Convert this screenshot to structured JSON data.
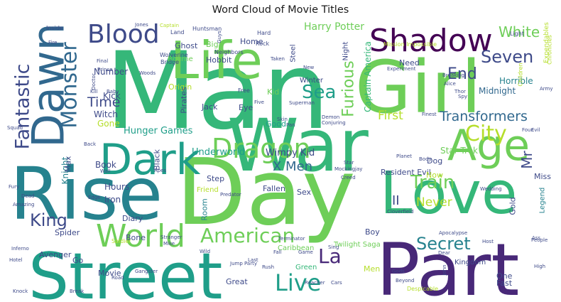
{
  "title": "Word Cloud of Movie Titles",
  "palette": [
    "#440154",
    "#482878",
    "#3e4a89",
    "#31688e",
    "#26828e",
    "#1f9e89",
    "#35b779",
    "#6ece58",
    "#b5de2b"
  ],
  "words": [
    {
      "text": "Man",
      "c": "#35b779"
    },
    {
      "text": "Day",
      "c": "#6ece58"
    },
    {
      "text": "Street",
      "c": "#1f9e89"
    },
    {
      "text": "Part",
      "c": "#482878"
    },
    {
      "text": "Girl",
      "c": "#6ece58"
    },
    {
      "text": "Rise",
      "c": "#26828e"
    },
    {
      "text": "War",
      "c": "#35b779"
    },
    {
      "text": "Love",
      "c": "#35b779"
    },
    {
      "text": "Life",
      "c": "#6ece58"
    },
    {
      "text": "Dawn",
      "c": "#31688e"
    },
    {
      "text": "Age",
      "c": "#6ece58"
    },
    {
      "text": "Dark",
      "c": "#1f9e89"
    },
    {
      "text": "Shadow",
      "c": "#440154"
    },
    {
      "text": "World",
      "c": "#6ece58"
    },
    {
      "text": "Dragon",
      "c": "#6ece58"
    },
    {
      "text": "Blood",
      "c": "#3e4a89"
    },
    {
      "text": "Monster",
      "c": "#31688e"
    },
    {
      "text": "City",
      "c": "#b5de2b"
    },
    {
      "text": "Fantastic",
      "c": "#3e4a89"
    },
    {
      "text": "American",
      "c": "#6ece58"
    },
    {
      "text": "Live",
      "c": "#1f9e89"
    },
    {
      "text": "Seven",
      "c": "#3e4a89"
    },
    {
      "text": "Sea",
      "c": "#1f9e89"
    },
    {
      "text": "Train",
      "c": "#6ece58"
    },
    {
      "text": "Secret",
      "c": "#26828e"
    },
    {
      "text": "King",
      "c": "#3e4a89"
    },
    {
      "text": "La",
      "c": "#482878"
    },
    {
      "text": "Transformers",
      "c": "#31688e"
    },
    {
      "text": "End",
      "c": "#3e4a89"
    },
    {
      "text": "White",
      "c": "#6ece58"
    },
    {
      "text": "Furious",
      "c": "#6ece58"
    },
    {
      "text": "Time",
      "c": "#3e4a89"
    },
    {
      "text": "First",
      "c": "#b5de2b"
    },
    {
      "text": "Never",
      "c": "#b5de2b"
    },
    {
      "text": "Mr",
      "c": "#3e4a89"
    },
    {
      "text": "II",
      "c": "#3e4a89"
    },
    {
      "text": "X Men",
      "c": "#31688e"
    },
    {
      "text": "Harry Potter",
      "c": "#6ece58"
    },
    {
      "text": "Hunger Games",
      "c": "#1f9e89"
    },
    {
      "text": "Underworld",
      "c": "#1f9e89"
    },
    {
      "text": "Wimpy Kid",
      "c": "#3e4a89"
    },
    {
      "text": "Captain America",
      "c": "#35b779"
    },
    {
      "text": "Resident Evil",
      "c": "#3e4a89"
    },
    {
      "text": "Star Trek",
      "c": "#6ece58"
    },
    {
      "text": "Horrible",
      "c": "#26828e"
    },
    {
      "text": "Midnight",
      "c": "#31688e"
    },
    {
      "text": "Number",
      "c": "#3e4a89"
    },
    {
      "text": "Kick",
      "c": "#3e4a89"
    },
    {
      "text": "Witch",
      "c": "#3e4a89"
    },
    {
      "text": "Gone",
      "c": "#b5de2b"
    },
    {
      "text": "Book",
      "c": "#3e4a89"
    },
    {
      "text": "Hours",
      "c": "#3e4a89"
    },
    {
      "text": "Iron",
      "c": "#3e4a89"
    },
    {
      "text": "Knight",
      "c": "#26828e"
    },
    {
      "text": "Max",
      "c": "#3e4a89"
    },
    {
      "text": "Diary",
      "c": "#3e4a89"
    },
    {
      "text": "Bone",
      "c": "#3e4a89"
    },
    {
      "text": "Black",
      "c": "#3e4a89"
    },
    {
      "text": "Jack",
      "c": "#3e4a89"
    },
    {
      "text": "Eye",
      "c": "#3e4a89"
    },
    {
      "text": "Kid",
      "c": "#6ece58"
    },
    {
      "text": "Good",
      "c": "#1f9e89"
    },
    {
      "text": "Home",
      "c": "#3e4a89"
    },
    {
      "text": "Big",
      "c": "#6ece58"
    },
    {
      "text": "Hobbit",
      "c": "#3e4a89"
    },
    {
      "text": "Ghost",
      "c": "#3e4a89"
    },
    {
      "text": "Bourne",
      "c": "#6ece58"
    },
    {
      "text": "Origin",
      "c": "#b5de2b"
    },
    {
      "text": "Pirates",
      "c": "#3e4a89"
    },
    {
      "text": "Step",
      "c": "#3e4a89"
    },
    {
      "text": "Friend",
      "c": "#b5de2b"
    },
    {
      "text": "Fallen",
      "c": "#3e4a89"
    },
    {
      "text": "Sex",
      "c": "#3e4a89"
    },
    {
      "text": "Room",
      "c": "#26828e"
    },
    {
      "text": "Boy",
      "c": "#3e4a89"
    },
    {
      "text": "Dog",
      "c": "#3e4a89"
    },
    {
      "text": "Now",
      "c": "#b5de2b"
    },
    {
      "text": "Miss",
      "c": "#3e4a89"
    },
    {
      "text": "Gold",
      "c": "#3e4a89"
    },
    {
      "text": "Steel",
      "c": "#3e4a89"
    },
    {
      "text": "Winter",
      "c": "#3e4a89"
    },
    {
      "text": "Night",
      "c": "#3e4a89"
    },
    {
      "text": "Need",
      "c": "#3e4a89"
    },
    {
      "text": "Spider",
      "c": "#3e4a89"
    },
    {
      "text": "Avenger",
      "c": "#3e4a89"
    },
    {
      "text": "Movie",
      "c": "#3e4a89"
    },
    {
      "text": "Go",
      "c": "#3e4a89"
    },
    {
      "text": "Great",
      "c": "#3e4a89"
    },
    {
      "text": "Green",
      "c": "#35b779"
    },
    {
      "text": "Men",
      "c": "#b5de2b"
    },
    {
      "text": "Caribbean",
      "c": "#6ece58"
    },
    {
      "text": "Twilight Saga",
      "c": "#6ece58"
    },
    {
      "text": "Kingdom",
      "c": "#3e4a89"
    },
    {
      "text": "One",
      "c": "#3e4a89"
    },
    {
      "text": "Fast",
      "c": "#3e4a89"
    },
    {
      "text": "Legend",
      "c": "#26828e"
    },
    {
      "text": "Expendables",
      "c": "#b5de2b"
    },
    {
      "text": "Wolverine",
      "c": "#3e4a89"
    },
    {
      "text": "Bridge",
      "c": "#3e4a89"
    },
    {
      "text": "Neighbors",
      "c": "#3e4a89"
    },
    {
      "text": "Hard",
      "c": "#3e4a89"
    },
    {
      "text": "Rock",
      "c": "#3e4a89"
    },
    {
      "text": "Huntsman",
      "c": "#3e4a89"
    },
    {
      "text": "Land",
      "c": "#3e4a89"
    },
    {
      "text": "Captain",
      "c": "#b5de2b"
    },
    {
      "text": "Jones",
      "c": "#3e4a89"
    },
    {
      "text": "Mission Impossible",
      "c": "#b5de2b"
    },
    {
      "text": "Chronicles",
      "c": "#b5de2b"
    },
    {
      "text": "Light",
      "c": "#3e4a89"
    },
    {
      "text": "Inside",
      "c": "#3e4a89"
    },
    {
      "text": "Fire",
      "c": "#3e4a89"
    },
    {
      "text": "Prince",
      "c": "#3e4a89"
    },
    {
      "text": "Final",
      "c": "#3e4a89"
    },
    {
      "text": "Doctor",
      "c": "#3e4a89"
    },
    {
      "text": "Woods",
      "c": "#3e4a89"
    },
    {
      "text": "Kill",
      "c": "#3e4a89"
    },
    {
      "text": "Baby",
      "c": "#3e4a89"
    },
    {
      "text": "Free",
      "c": "#3e4a89"
    },
    {
      "text": "Five",
      "c": "#3e4a89"
    },
    {
      "text": "Superman",
      "c": "#3e4a89"
    },
    {
      "text": "Skin",
      "c": "#3e4a89"
    },
    {
      "text": "Pan",
      "c": "#3e4a89"
    },
    {
      "text": "Demon",
      "c": "#3e4a89"
    },
    {
      "text": "Conjuring",
      "c": "#3e4a89"
    },
    {
      "text": "Finest",
      "c": "#3e4a89"
    },
    {
      "text": "Experiment",
      "c": "#3e4a89"
    },
    {
      "text": "Breaking",
      "c": "#3e4a89"
    },
    {
      "text": "Alice",
      "c": "#3e4a89"
    },
    {
      "text": "Thor",
      "c": "#3e4a89"
    },
    {
      "text": "Spy",
      "c": "#3e4a89"
    },
    {
      "text": "Children",
      "c": "#b5de2b"
    },
    {
      "text": "Army",
      "c": "#3e4a89"
    },
    {
      "text": "Four",
      "c": "#3e4a89"
    },
    {
      "text": "Evil",
      "c": "#3e4a89"
    },
    {
      "text": "Planet",
      "c": "#3e4a89"
    },
    {
      "text": "Body",
      "c": "#3e4a89"
    },
    {
      "text": "Star",
      "c": "#3e4a89"
    },
    {
      "text": "Mockingjay",
      "c": "#3e4a89"
    },
    {
      "text": "Creed",
      "c": "#3e4a89"
    },
    {
      "text": "Wedding",
      "c": "#3e4a89"
    },
    {
      "text": "Squad",
      "c": "#3e4a89"
    },
    {
      "text": "Back",
      "c": "#3e4a89"
    },
    {
      "text": "Wall",
      "c": "#3e4a89"
    },
    {
      "text": "Edge",
      "c": "#3e4a89"
    },
    {
      "text": "Apes",
      "c": "#3e4a89"
    },
    {
      "text": "Predator",
      "c": "#3e4a89"
    },
    {
      "text": "Fury",
      "c": "#3e4a89"
    },
    {
      "text": "Dead",
      "c": "#3e4a89"
    },
    {
      "text": "Amazing",
      "c": "#3e4a89"
    },
    {
      "text": "Inferno",
      "c": "#3e4a89"
    },
    {
      "text": "Hotel",
      "c": "#3e4a89"
    },
    {
      "text": "Knock",
      "c": "#3e4a89"
    },
    {
      "text": "Break",
      "c": "#3e4a89"
    },
    {
      "text": "Road",
      "c": "#3e4a89"
    },
    {
      "text": "Gangster",
      "c": "#3e4a89"
    },
    {
      "text": "Soldier",
      "c": "#b5de2b"
    },
    {
      "text": "Stranger",
      "c": "#3e4a89"
    },
    {
      "text": "Mike",
      "c": "#3e4a89"
    },
    {
      "text": "Wild",
      "c": "#3e4a89"
    },
    {
      "text": "Jump",
      "c": "#3e4a89"
    },
    {
      "text": "Party",
      "c": "#3e4a89"
    },
    {
      "text": "Terminator",
      "c": "#3e4a89"
    },
    {
      "text": "Last",
      "c": "#3e4a89"
    },
    {
      "text": "Rush",
      "c": "#3e4a89"
    },
    {
      "text": "Game",
      "c": "#3e4a89"
    },
    {
      "text": "Reacher",
      "c": "#3e4a89"
    },
    {
      "text": "Cars",
      "c": "#3e4a89"
    },
    {
      "text": "Gods",
      "c": "#3e4a89"
    },
    {
      "text": "Beyond",
      "c": "#3e4a89"
    },
    {
      "text": "Despicable",
      "c": "#b5de2b"
    },
    {
      "text": "Apocalypse",
      "c": "#3e4a89"
    },
    {
      "text": "Host",
      "c": "#3e4a89"
    },
    {
      "text": "People",
      "c": "#3e4a89"
    },
    {
      "text": "Ass",
      "c": "#3e4a89"
    },
    {
      "text": "High",
      "c": "#3e4a89"
    },
    {
      "text": "Cloverfield",
      "c": "#3e4a89"
    },
    {
      "text": "Sing",
      "c": "#3e4a89"
    },
    {
      "text": "Fall",
      "c": "#3e4a89"
    },
    {
      "text": "Dear",
      "c": "#3e4a89"
    },
    {
      "text": "John",
      "c": "#3e4a89"
    },
    {
      "text": "Guys",
      "c": "#3e4a89"
    },
    {
      "text": "Taken",
      "c": "#3e4a89"
    },
    {
      "text": "New",
      "c": "#3e4a89"
    },
    {
      "text": "Unexpected",
      "c": "#3e4a89"
    }
  ]
}
